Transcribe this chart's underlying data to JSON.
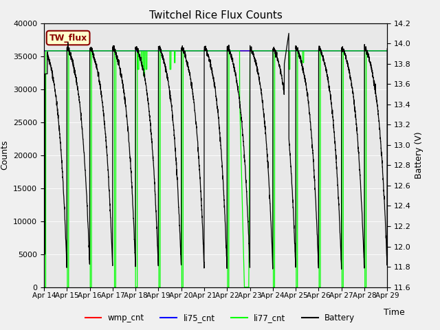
{
  "title": "Twitchel Rice Flux Counts",
  "xlabel": "Time",
  "ylabel_left": "Counts",
  "ylabel_right": "Battery (V)",
  "ylim_left": [
    0,
    40000
  ],
  "ylim_right": [
    11.6,
    14.2
  ],
  "xlim": [
    0,
    15
  ],
  "xtick_labels": [
    "Apr 14",
    "Apr 15",
    "Apr 16",
    "Apr 17",
    "Apr 18",
    "Apr 19",
    "Apr 20",
    "Apr 21",
    "Apr 22",
    "Apr 23",
    "Apr 24",
    "Apr 25",
    "Apr 26",
    "Apr 27",
    "Apr 28",
    "Apr 29"
  ],
  "xtick_positions": [
    0,
    1,
    2,
    3,
    4,
    5,
    6,
    7,
    8,
    9,
    10,
    11,
    12,
    13,
    14,
    15
  ],
  "yticks_left": [
    0,
    5000,
    10000,
    15000,
    20000,
    25000,
    30000,
    35000,
    40000
  ],
  "yticks_right": [
    11.6,
    11.8,
    12.0,
    12.2,
    12.4,
    12.6,
    12.8,
    13.0,
    13.2,
    13.4,
    13.6,
    13.8,
    14.0,
    14.2
  ],
  "fig_bg_color": "#f0f0f0",
  "plot_bg_color": "#e8e8e8",
  "tw_flux_label": "TW_flux",
  "tw_flux_bg": "#ffffcc",
  "tw_flux_border": "#8b0000",
  "legend_items": [
    "wmp_cnt",
    "li75_cnt",
    "li77_cnt",
    "Battery"
  ],
  "legend_colors": [
    "#ff0000",
    "#0000ff",
    "#00ff00",
    "#000000"
  ],
  "line_wmp_color": "#ff0000",
  "line_li75_color": "#0000ff",
  "line_li77_color": "#00ff00",
  "line_battery_color": "#000000",
  "gridcolor": "#ffffff",
  "li77_base": 35800,
  "bat_hi_v": 14.0,
  "bat_lo_v": 11.75
}
